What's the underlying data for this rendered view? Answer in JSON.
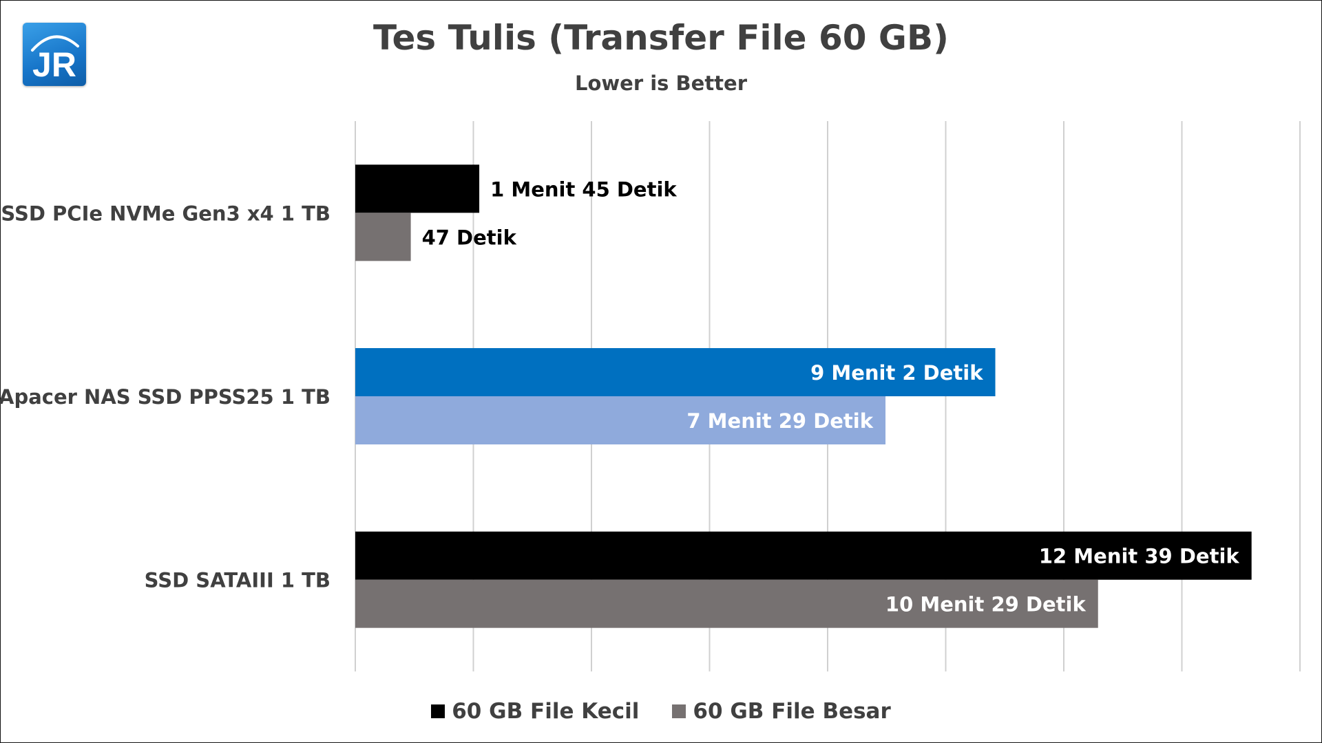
{
  "title": "Tes Tulis (Transfer File 60 GB)",
  "subtitle": "Lower is Better",
  "logo_text": "JR",
  "colors": {
    "kecil_default": "#000000",
    "besar_default": "#767171",
    "apacer_kecil": "#0070C0",
    "apacer_besar": "#8FAADC",
    "gridline": "#d0d0d0",
    "axis_text": "#404040"
  },
  "legend": [
    {
      "label": "60 GB File Kecil",
      "color": "#000000"
    },
    {
      "label": "60 GB File Besar",
      "color": "#767171"
    }
  ],
  "chart_data": {
    "type": "bar",
    "orientation": "horizontal",
    "unit": "seconds",
    "xlim": [
      0,
      800
    ],
    "x_axis_labels_shown": false,
    "grid": true,
    "legend_position": "bottom",
    "categories": [
      "SSD PCIe NVMe Gen3 x4 1 TB",
      "Apacer NAS SSD PPSS25 1 TB",
      "SSD SATAIII 1 TB"
    ],
    "series": [
      {
        "name": "60 GB File Kecil",
        "values": [
          105,
          542,
          759
        ],
        "labels": [
          "1 Menit 45 Detik",
          "9 Menit 2 Detik",
          "12 Menit 39 Detik"
        ],
        "colors": [
          "#000000",
          "#0070C0",
          "#000000"
        ]
      },
      {
        "name": "60 GB File Besar",
        "values": [
          47,
          449,
          629
        ],
        "labels": [
          "47 Detik",
          "7 Menit 29 Detik",
          "10 Menit 29 Detik"
        ],
        "colors": [
          "#767171",
          "#8FAADC",
          "#767171"
        ]
      }
    ]
  }
}
